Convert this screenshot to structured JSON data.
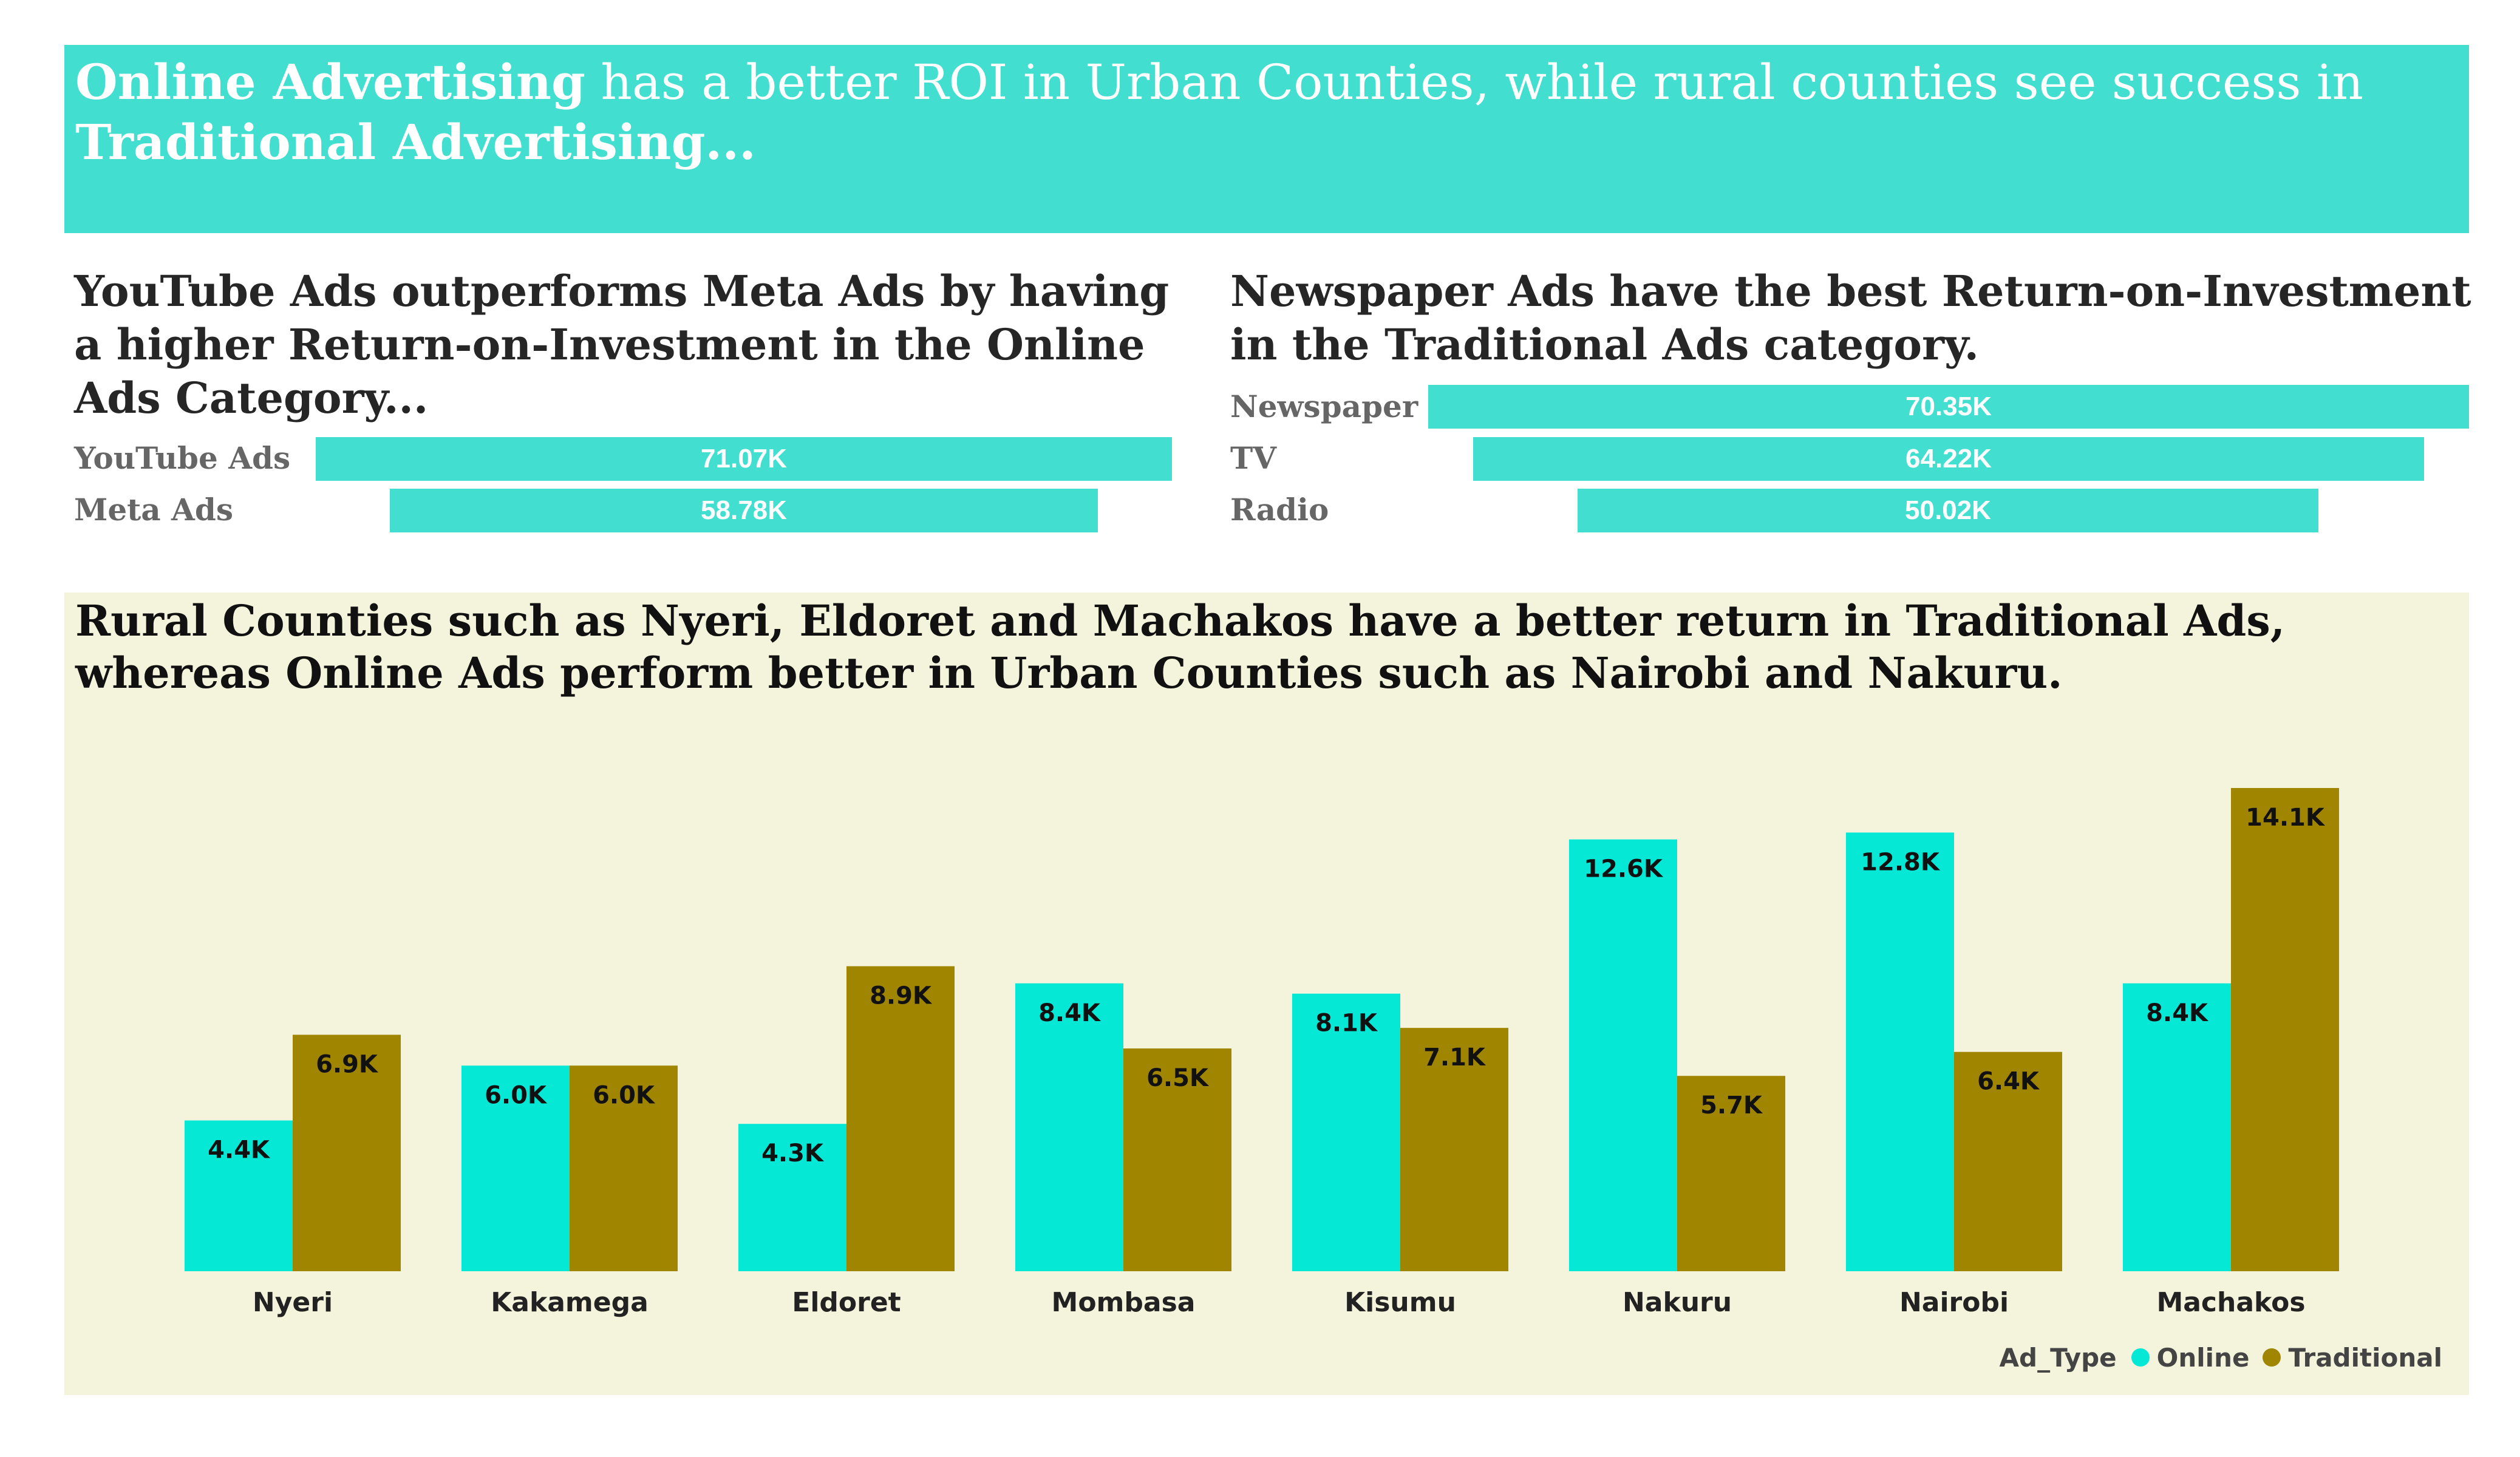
{
  "banner": {
    "bold1": "Online Advertising",
    "text1": " has a better ROI in Urban Counties, while rural counties see success in ",
    "bold2": "Traditional Advertising..."
  },
  "online_panel": {
    "title": "YouTube Ads outperforms Meta Ads by having a higher Return-on-Investment in the Online Ads Category...",
    "bars": [
      {
        "label": "YouTube Ads",
        "value": 71.07,
        "value_label": "71.07K"
      },
      {
        "label": "Meta Ads",
        "value": 58.78,
        "value_label": "58.78K"
      }
    ]
  },
  "traditional_panel": {
    "title": "Newspaper Ads have the best Return-on-Investment in the Traditional Ads category.",
    "bars": [
      {
        "label": "Newspaper",
        "value": 70.35,
        "value_label": "70.35K"
      },
      {
        "label": "TV",
        "value": 64.22,
        "value_label": "64.22K"
      },
      {
        "label": "Radio",
        "value": 50.02,
        "value_label": "50.02K"
      }
    ]
  },
  "chart_data": {
    "type": "bar",
    "title": "Rural Counties such as Nyeri, Eldoret and Machakos have a better return in Traditional Ads, whereas Online Ads perform better in Urban Counties such as Nairobi and Nakuru.",
    "categories": [
      "Nyeri",
      "Kakamega",
      "Eldoret",
      "Mombasa",
      "Kisumu",
      "Nakuru",
      "Nairobi",
      "Machakos"
    ],
    "series": [
      {
        "name": "Online",
        "color": "#06e8d6",
        "values": [
          4.4,
          6.0,
          4.3,
          8.4,
          8.1,
          12.6,
          12.8,
          8.4
        ],
        "labels": [
          "4.4K",
          "6.0K",
          "4.3K",
          "8.4K",
          "8.1K",
          "12.6K",
          "12.8K",
          "8.4K"
        ]
      },
      {
        "name": "Traditional",
        "color": "#a08600",
        "values": [
          6.9,
          6.0,
          8.9,
          6.5,
          7.1,
          5.7,
          6.4,
          14.1
        ],
        "labels": [
          "6.9K",
          "6.0K",
          "8.9K",
          "6.5K",
          "7.1K",
          "5.7K",
          "6.4K",
          "14.1K"
        ]
      }
    ],
    "ylim": [
      0,
      14.1
    ],
    "grid": false,
    "legend": {
      "title": "Ad_Type",
      "position": "bottom-right"
    }
  }
}
